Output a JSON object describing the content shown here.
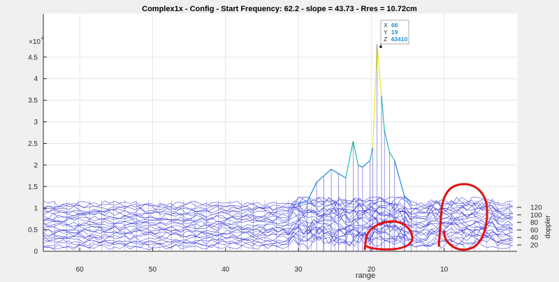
{
  "chart_data": {
    "type": "mesh",
    "title": "Complex1x - Config - Start Frequency: 62.2 -  slope = 43.73 - Rres = 10.72cm",
    "xlabel": "range",
    "zlabel": "doppler",
    "y_exponent_label": "×10",
    "y_exponent_power": "4",
    "x_axis": {
      "range": [
        65,
        0
      ],
      "ticks": [
        60,
        50,
        40,
        30,
        20,
        10
      ]
    },
    "y_axis": {
      "range": [
        0,
        55000
      ],
      "ticks": [
        0,
        5000,
        10000,
        15000,
        20000,
        25000,
        30000,
        35000,
        40000,
        45000
      ],
      "tick_labels": [
        "0",
        "0.5",
        "1",
        "1.5",
        "2",
        "2.5",
        "3",
        "3.5",
        "4",
        "4.5"
      ]
    },
    "doppler_axis": {
      "ticks": [
        20,
        40,
        60,
        80,
        100,
        120
      ]
    },
    "mesh_colors": {
      "baseline": "#2a2ad6",
      "mid": "#2b8fd9",
      "high": "#30c0b0",
      "peak": "#e8e82a"
    },
    "peak_profile": [
      {
        "range": 30.0,
        "z": 11000
      },
      {
        "range": 28.8,
        "z": 11500
      },
      {
        "range": 27.5,
        "z": 16000
      },
      {
        "range": 26.5,
        "z": 17500
      },
      {
        "range": 25.5,
        "z": 19000
      },
      {
        "range": 24.5,
        "z": 18000
      },
      {
        "range": 23.5,
        "z": 17000
      },
      {
        "range": 22.5,
        "z": 25500
      },
      {
        "range": 21.8,
        "z": 20000
      },
      {
        "range": 21.2,
        "z": 19500
      },
      {
        "range": 20.2,
        "z": 21000
      },
      {
        "range": 19.8,
        "z": 24000
      },
      {
        "range": 19.2,
        "z": 48000
      },
      {
        "range": 18.6,
        "z": 36000
      },
      {
        "range": 18.2,
        "z": 28000
      },
      {
        "range": 17.5,
        "z": 23000
      },
      {
        "range": 16.8,
        "z": 21000
      },
      {
        "range": 15.5,
        "z": 13000
      },
      {
        "range": 14.5,
        "z": 11000
      }
    ],
    "datatip": {
      "x_label": "X",
      "x_value": "66",
      "y_label": "Y",
      "y_value": "19",
      "z_label": "Z",
      "z_value": "43410"
    }
  }
}
